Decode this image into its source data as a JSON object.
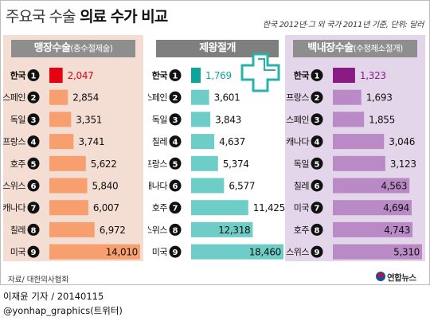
{
  "header": {
    "title_part1": "주요국 수술",
    "title_part2": " 의료 수가 비교",
    "note": "한국 2012년·그 외 국가 2011년 기준, 단위: 달러"
  },
  "footer": {
    "source": "자료/ 대한의사협회",
    "credit_line1": "이재윤 기자 / 20140115",
    "credit_line2": "@yonhap_graphics(트위터)",
    "logo_text": "연합뉴스"
  },
  "colors": {
    "panel1_bar": "#f79f6f",
    "panel1_bg": "#f4ddd3",
    "panel2_bar": "#6fcdc7",
    "panel2_bg": "#d6ede9",
    "panel3_bar": "#b98ac6",
    "panel3_bg": "#e4d6ea",
    "korea_red": "#e60012",
    "korea_teal": "#0fa39a",
    "korea_purple": "#8a1b85"
  },
  "chart_data": [
    {
      "type": "bar",
      "title": "맹장수술",
      "subtitle": "(충수절제술)",
      "ranks": [
        "1",
        "2",
        "3",
        "4",
        "5",
        "6",
        "7",
        "8",
        "9"
      ],
      "categories": [
        "한국",
        "스페인",
        "독일",
        "프랑스",
        "호주",
        "스위스",
        "캐나다",
        "칠레",
        "미국"
      ],
      "values": [
        2047,
        2854,
        3351,
        3741,
        5622,
        5840,
        6007,
        6972,
        14010
      ],
      "value_labels": [
        "2,047",
        "2,854",
        "3,351",
        "3,741",
        "5,622",
        "5,840",
        "6,007",
        "6,972",
        "14,010"
      ]
    },
    {
      "type": "bar",
      "title": "제왕절개",
      "subtitle": "",
      "ranks": [
        "1",
        "2",
        "3",
        "4",
        "5",
        "6",
        "7",
        "8",
        "9"
      ],
      "categories": [
        "한국",
        "스페인",
        "독일",
        "칠레",
        "프랑스",
        "캐나다",
        "호주",
        "스위스",
        "미국"
      ],
      "values": [
        1769,
        3601,
        3843,
        4637,
        5374,
        6577,
        11425,
        12318,
        18460
      ],
      "value_labels": [
        "1,769",
        "3,601",
        "3,843",
        "4,637",
        "5,374",
        "6,577",
        "11,425",
        "12,318",
        "18,460"
      ]
    },
    {
      "type": "bar",
      "title": "백내장수술",
      "subtitle": "(수정체소절개)",
      "ranks": [
        "1",
        "2",
        "3",
        "4",
        "5",
        "6",
        "7",
        "8",
        "9"
      ],
      "categories": [
        "한국",
        "프랑스",
        "스페인",
        "캐나다",
        "독일",
        "칠레",
        "미국",
        "호주",
        "스위스"
      ],
      "values": [
        1323,
        1693,
        1855,
        3046,
        3123,
        4563,
        4694,
        4743,
        5310
      ],
      "value_labels": [
        "1,323",
        "1,693",
        "1,855",
        "3,046",
        "3,123",
        "4,563",
        "4,694",
        "4,743",
        "5,310"
      ]
    }
  ]
}
